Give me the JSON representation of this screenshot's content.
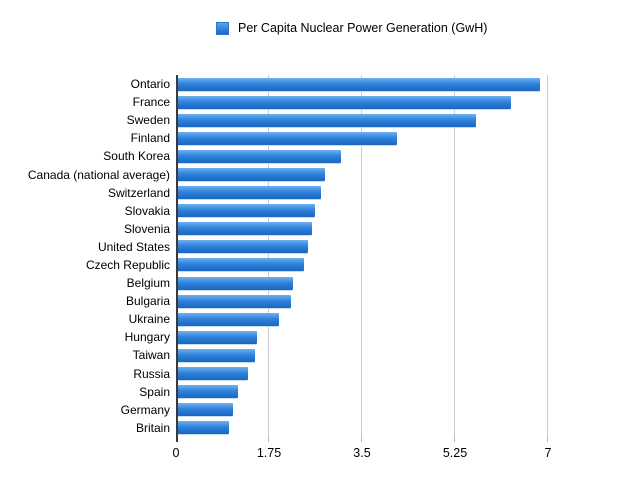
{
  "chart_data": {
    "type": "bar",
    "orientation": "horizontal",
    "title": "",
    "legend": "Per Capita Nuclear Power Generation (GwH)",
    "legend_position": "top-center",
    "xlabel": "",
    "ylabel": "",
    "xlim": [
      0,
      7
    ],
    "grid": true,
    "x_ticks": [
      {
        "value": 0,
        "label": "0"
      },
      {
        "value": 1.75,
        "label": "1.75"
      },
      {
        "value": 3.5,
        "label": "3.5"
      },
      {
        "value": 5.25,
        "label": "5.25"
      },
      {
        "value": 7,
        "label": "7"
      }
    ],
    "categories": [
      "Ontario",
      "France",
      "Sweden",
      "Finland",
      "South Korea",
      "Canada (national average)",
      "Switzerland",
      "Slovakia",
      "Slovenia",
      "United States",
      "Czech Republic",
      "Belgium",
      "Bulgaria",
      "Ukraine",
      "Hungary",
      "Taiwan",
      "Russia",
      "Spain",
      "Germany",
      "Britain"
    ],
    "values": [
      6.85,
      6.3,
      5.65,
      4.15,
      3.1,
      2.8,
      2.72,
      2.62,
      2.56,
      2.48,
      2.4,
      2.2,
      2.17,
      1.93,
      1.52,
      1.49,
      1.36,
      1.16,
      1.08,
      0.99
    ]
  },
  "colors": {
    "background": "#ffffff",
    "text": "#000000",
    "legend_swatch": "#2e7ed8",
    "bar_gradient_top": "#6fb0ef",
    "bar_gradient_mid": "#2f83dd",
    "bar_gradient_bottom": "#1a66c0",
    "gridline": "#cccccc",
    "axis_line": "#3a3a3a",
    "tick": "#b5b5b5"
  }
}
